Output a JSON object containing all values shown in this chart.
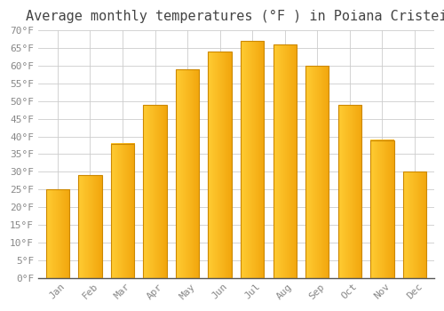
{
  "title": "Average monthly temperatures (°F ) in Poiana Cristei",
  "months": [
    "Jan",
    "Feb",
    "Mar",
    "Apr",
    "May",
    "Jun",
    "Jul",
    "Aug",
    "Sep",
    "Oct",
    "Nov",
    "Dec"
  ],
  "values": [
    25,
    29,
    38,
    49,
    59,
    64,
    67,
    66,
    60,
    49,
    39,
    30
  ],
  "bar_color_left": "#FFB92E",
  "bar_color_right": "#F5A800",
  "bar_edge_color": "#CC8800",
  "background_color": "#FFFFFF",
  "plot_bg_color": "#FFFFFF",
  "grid_color": "#CCCCCC",
  "text_color": "#888888",
  "title_color": "#444444",
  "ylim": [
    0,
    70
  ],
  "ytick_step": 5,
  "title_fontsize": 11,
  "tick_fontsize": 8,
  "font_family": "monospace"
}
